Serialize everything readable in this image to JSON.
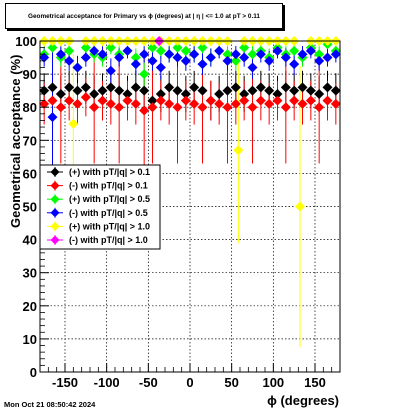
{
  "title": "Geometrical acceptance for Primary vs ϕ (degrees) at | η | <= 1.0 at pT > 0.11",
  "footer": "Mon Oct 21 08:50:42 2024",
  "chart_data": {
    "type": "scatter",
    "xlabel": "ϕ (degrees)",
    "ylabel": "Geometrical acceptance (%)",
    "xlim": [
      -180,
      180
    ],
    "ylim": [
      0,
      100
    ],
    "xticks": [
      -150,
      -100,
      -50,
      0,
      50,
      100,
      150
    ],
    "yticks": [
      0,
      10,
      20,
      30,
      40,
      50,
      60,
      70,
      80,
      90,
      100
    ],
    "grid": true,
    "legend_position": "middle-left",
    "series": [
      {
        "name": "(+) with pT/|q| > 0.1",
        "color": "#000000",
        "marker": "diamond",
        "x": [
          -175,
          -165,
          -155,
          -145,
          -135,
          -125,
          -115,
          -105,
          -95,
          -85,
          -75,
          -65,
          -55,
          -45,
          -35,
          -25,
          -15,
          -5,
          5,
          15,
          25,
          35,
          45,
          55,
          65,
          75,
          85,
          95,
          105,
          115,
          125,
          135,
          145,
          155,
          165,
          175
        ],
        "y": [
          85,
          86,
          84,
          86,
          85,
          86,
          84,
          85,
          86,
          85,
          84,
          86,
          85,
          82,
          84,
          86,
          85,
          84,
          86,
          85,
          82,
          84,
          85,
          86,
          84,
          85,
          86,
          85,
          84,
          86,
          85,
          86,
          85,
          84,
          86,
          85
        ]
      },
      {
        "name": "(-) with pT/|q| > 0.1",
        "color": "#ff0000",
        "marker": "diamond",
        "x": [
          -175,
          -165,
          -155,
          -145,
          -135,
          -125,
          -115,
          -105,
          -95,
          -85,
          -75,
          -65,
          -55,
          -45,
          -35,
          -25,
          -15,
          -5,
          5,
          15,
          25,
          35,
          45,
          55,
          65,
          75,
          85,
          95,
          105,
          115,
          125,
          135,
          145,
          155,
          165,
          175
        ],
        "y": [
          81,
          82,
          80,
          82,
          81,
          83,
          80,
          82,
          81,
          80,
          82,
          81,
          79,
          80,
          82,
          81,
          80,
          82,
          81,
          80,
          82,
          81,
          80,
          81,
          82,
          80,
          82,
          81,
          82,
          80,
          82,
          81,
          82,
          80,
          82,
          81
        ]
      },
      {
        "name": "(+) with pT/|q| > 0.5",
        "color": "#00ff00",
        "marker": "diamond",
        "x": [
          -175,
          -165,
          -155,
          -145,
          -135,
          -125,
          -115,
          -105,
          -95,
          -85,
          -75,
          -65,
          -55,
          -45,
          -35,
          -25,
          -15,
          -5,
          5,
          15,
          25,
          35,
          45,
          55,
          65,
          75,
          85,
          95,
          105,
          115,
          125,
          135,
          145,
          155,
          165,
          175
        ],
        "y": [
          96,
          98,
          95,
          97,
          92,
          98,
          96,
          95,
          98,
          96,
          97,
          95,
          90,
          98,
          97,
          96,
          98,
          97,
          96,
          98,
          95,
          97,
          96,
          94,
          98,
          96,
          97,
          95,
          98,
          96,
          97,
          95,
          98,
          96,
          99,
          97
        ]
      },
      {
        "name": "(-) with pT/|q| > 0.5",
        "color": "#0000ff",
        "marker": "diamond",
        "x": [
          -175,
          -165,
          -155,
          -145,
          -135,
          -125,
          -115,
          -105,
          -95,
          -85,
          -75,
          -65,
          -55,
          -45,
          -35,
          -25,
          -15,
          -5,
          5,
          15,
          25,
          35,
          45,
          55,
          65,
          75,
          85,
          95,
          105,
          115,
          125,
          135,
          145,
          155,
          165,
          175
        ],
        "y": [
          95,
          77,
          96,
          94,
          92,
          95,
          97,
          96,
          91,
          95,
          97,
          93,
          96,
          94,
          92,
          96,
          95,
          94,
          96,
          93,
          95,
          97,
          94,
          96,
          95,
          92,
          96,
          94,
          97,
          95,
          93,
          96,
          97,
          94,
          95,
          96
        ]
      },
      {
        "name": "(+) with pT/|q| > 1.0",
        "color": "#ffff00",
        "marker": "diamond",
        "x": [
          -175,
          -165,
          -155,
          -145,
          -140,
          -125,
          -115,
          -105,
          -95,
          -85,
          -75,
          -65,
          -55,
          -45,
          -35,
          -25,
          -15,
          -5,
          5,
          15,
          25,
          35,
          45,
          58,
          65,
          75,
          85,
          95,
          105,
          115,
          125,
          132,
          145,
          155,
          165,
          175
        ],
        "y": [
          100,
          100,
          100,
          100,
          75,
          100,
          100,
          100,
          100,
          100,
          100,
          100,
          100,
          100,
          100,
          100,
          100,
          100,
          100,
          100,
          100,
          100,
          100,
          67,
          100,
          100,
          100,
          100,
          100,
          100,
          100,
          50,
          100,
          100,
          100,
          100
        ]
      },
      {
        "name": "(-) with pT/|q| > 1.0",
        "color": "#ff00ff",
        "marker": "diamond",
        "x": [
          -37
        ],
        "y": [
          100
        ]
      }
    ]
  }
}
